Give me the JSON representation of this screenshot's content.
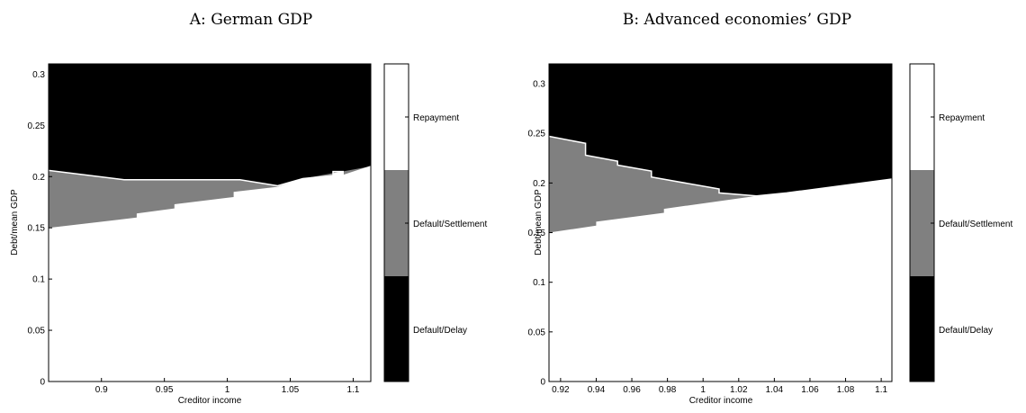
{
  "colors": {
    "Repayment": "#ffffff",
    "Default/Settlement": "#808080",
    "Default/Delay": "#000000"
  },
  "chart_data": [
    {
      "type": "area",
      "title": "A: German GDP",
      "xlabel": "Creditor income",
      "ylabel": "Debt/mean GDP",
      "xlim": [
        0.858,
        1.114
      ],
      "ylim": [
        0,
        0.31
      ],
      "xticks": [
        0.9,
        0.95,
        1,
        1.05,
        1.1
      ],
      "xtick_labels": [
        "0.9",
        "0.95",
        "1",
        "1.05",
        "1.1"
      ],
      "yticks": [
        0,
        0.05,
        0.1,
        0.15,
        0.2,
        0.25,
        0.3
      ],
      "ytick_labels": [
        "0",
        "0.05",
        "0.1",
        "0.15",
        "0.2",
        "0.25",
        "0.3"
      ],
      "regions": [
        "Repayment",
        "Default/Settlement",
        "Default/Delay"
      ],
      "upper_boundary": [
        [
          0.858,
          0.206
        ],
        [
          0.918,
          0.197
        ],
        [
          1.01,
          0.197
        ],
        [
          1.04,
          0.191
        ],
        [
          1.06,
          0.198
        ],
        [
          1.084,
          0.201
        ],
        [
          1.084,
          0.205
        ],
        [
          1.092,
          0.205
        ],
        [
          1.092,
          0.201
        ],
        [
          1.114,
          0.21
        ]
      ],
      "lower_boundary": [
        [
          0.858,
          0.15
        ],
        [
          0.928,
          0.16
        ],
        [
          0.928,
          0.164
        ],
        [
          0.958,
          0.169
        ],
        [
          0.958,
          0.173
        ],
        [
          1.005,
          0.18
        ],
        [
          1.005,
          0.185
        ],
        [
          1.04,
          0.19
        ],
        [
          1.06,
          0.198
        ],
        [
          1.114,
          0.21
        ]
      ]
    },
    {
      "type": "area",
      "xlabel": "Creditor income",
      "ylabel": "Debt/mean GDP",
      "xlim": [
        0.9135,
        1.106
      ],
      "ylim": [
        0,
        0.32
      ],
      "xticks": [
        0.92,
        0.94,
        0.96,
        0.98,
        1,
        1.02,
        1.04,
        1.06,
        1.08,
        1.1
      ],
      "xtick_labels": [
        "0.92",
        "0.94",
        "0.96",
        "0.98",
        "1",
        "1.02",
        "1.04",
        "1.06",
        "1.08",
        "1.1"
      ],
      "yticks": [
        0,
        0.05,
        0.1,
        0.15,
        0.2,
        0.25,
        0.3
      ],
      "ytick_labels": [
        "0",
        "0.05",
        "0.1",
        "0.15",
        "0.2",
        "0.25",
        "0.3"
      ],
      "regions": [
        "Repayment",
        "Default/Settlement",
        "Default/Delay"
      ],
      "upper_boundary": [
        [
          0.9135,
          0.247
        ],
        [
          0.934,
          0.24
        ],
        [
          0.934,
          0.228
        ],
        [
          0.952,
          0.222
        ],
        [
          0.952,
          0.218
        ],
        [
          0.971,
          0.212
        ],
        [
          0.971,
          0.206
        ],
        [
          1.009,
          0.194
        ],
        [
          1.009,
          0.19
        ],
        [
          1.03,
          0.187
        ],
        [
          1.047,
          0.19
        ],
        [
          1.106,
          0.204
        ]
      ],
      "lower_boundary": [
        [
          0.9135,
          0.15
        ],
        [
          0.94,
          0.157
        ],
        [
          0.94,
          0.161
        ],
        [
          0.978,
          0.17
        ],
        [
          0.978,
          0.174
        ],
        [
          1.03,
          0.187
        ],
        [
          1.047,
          0.19
        ],
        [
          1.106,
          0.204
        ]
      ]
    }
  ],
  "panels": [
    {
      "title": "A: German GDP",
      "xlabel": "Creditor income",
      "ylabel": "Debt/mean GDP"
    },
    {
      "title": "B: Advanced economies’ GDP",
      "xlabel": "Creditor income",
      "ylabel": "Debt/mean GDP"
    }
  ],
  "colorbars": [
    {
      "labels": [
        "Repayment",
        "Default/Settlement",
        "Default/Delay"
      ]
    },
    {
      "labels": [
        "Repayment",
        "Default/Settlement",
        "Default/Delay"
      ]
    }
  ]
}
